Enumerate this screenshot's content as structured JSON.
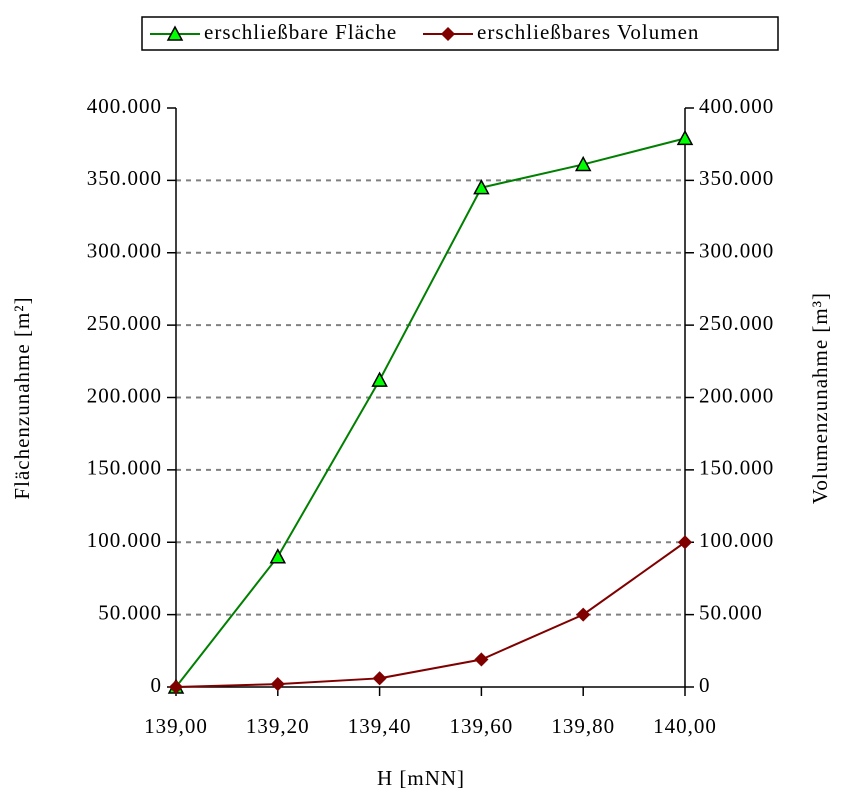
{
  "chart_data": {
    "type": "line",
    "x": [
      139.0,
      139.2,
      139.4,
      139.6,
      139.8,
      140.0
    ],
    "xlim": [
      139.0,
      140.0
    ],
    "xticks": [
      {
        "value": 139.0,
        "label": "139,00"
      },
      {
        "value": 139.2,
        "label": "139,20"
      },
      {
        "value": 139.4,
        "label": "139,40"
      },
      {
        "value": 139.6,
        "label": "139,60"
      },
      {
        "value": 139.8,
        "label": "139,80"
      },
      {
        "value": 140.0,
        "label": "140,00"
      }
    ],
    "xlabel": "H [mNN]",
    "ylabel": "Flächenzunahme [m²]",
    "y2label": "Volumenzunahme [m³]",
    "ylim": [
      0,
      400000
    ],
    "yticks": [
      0,
      {
        "value": 50000,
        "label": "50.000"
      },
      {
        "value": 100000,
        "label": "100.000"
      },
      {
        "value": 150000,
        "label": "150.000"
      },
      {
        "value": 200000,
        "label": "200.000"
      },
      {
        "value": 250000,
        "label": "250.000"
      },
      {
        "value": 300000,
        "label": "300.000"
      },
      {
        "value": 350000,
        "label": "350.000"
      },
      {
        "value": 400000,
        "label": "400.000"
      }
    ],
    "y2lim": [
      0,
      400000
    ],
    "y2ticks": [
      0,
      {
        "value": 50000,
        "label": "50.000"
      },
      {
        "value": 100000,
        "label": "100.000"
      },
      {
        "value": 150000,
        "label": "150.000"
      },
      {
        "value": 200000,
        "label": "200.000"
      },
      {
        "value": 250000,
        "label": "250.000"
      },
      {
        "value": 300000,
        "label": "300.000"
      },
      {
        "value": 350000,
        "label": "350.000"
      },
      {
        "value": 400000,
        "label": "400.000"
      }
    ],
    "grid": true,
    "legend": "top",
    "series": [
      {
        "name": "erschließbare Fläche",
        "color": "#008000",
        "marker_color": "#00ff00",
        "marker": "triangle",
        "values": [
          0,
          90000,
          212000,
          345000,
          361000,
          379000
        ]
      },
      {
        "name": "erschließbares Volumen",
        "color": "#800000",
        "marker_color": "#800000",
        "marker": "diamond",
        "axis": "y2",
        "values": [
          0,
          2000,
          6000,
          19000,
          50000,
          100000
        ]
      }
    ]
  }
}
